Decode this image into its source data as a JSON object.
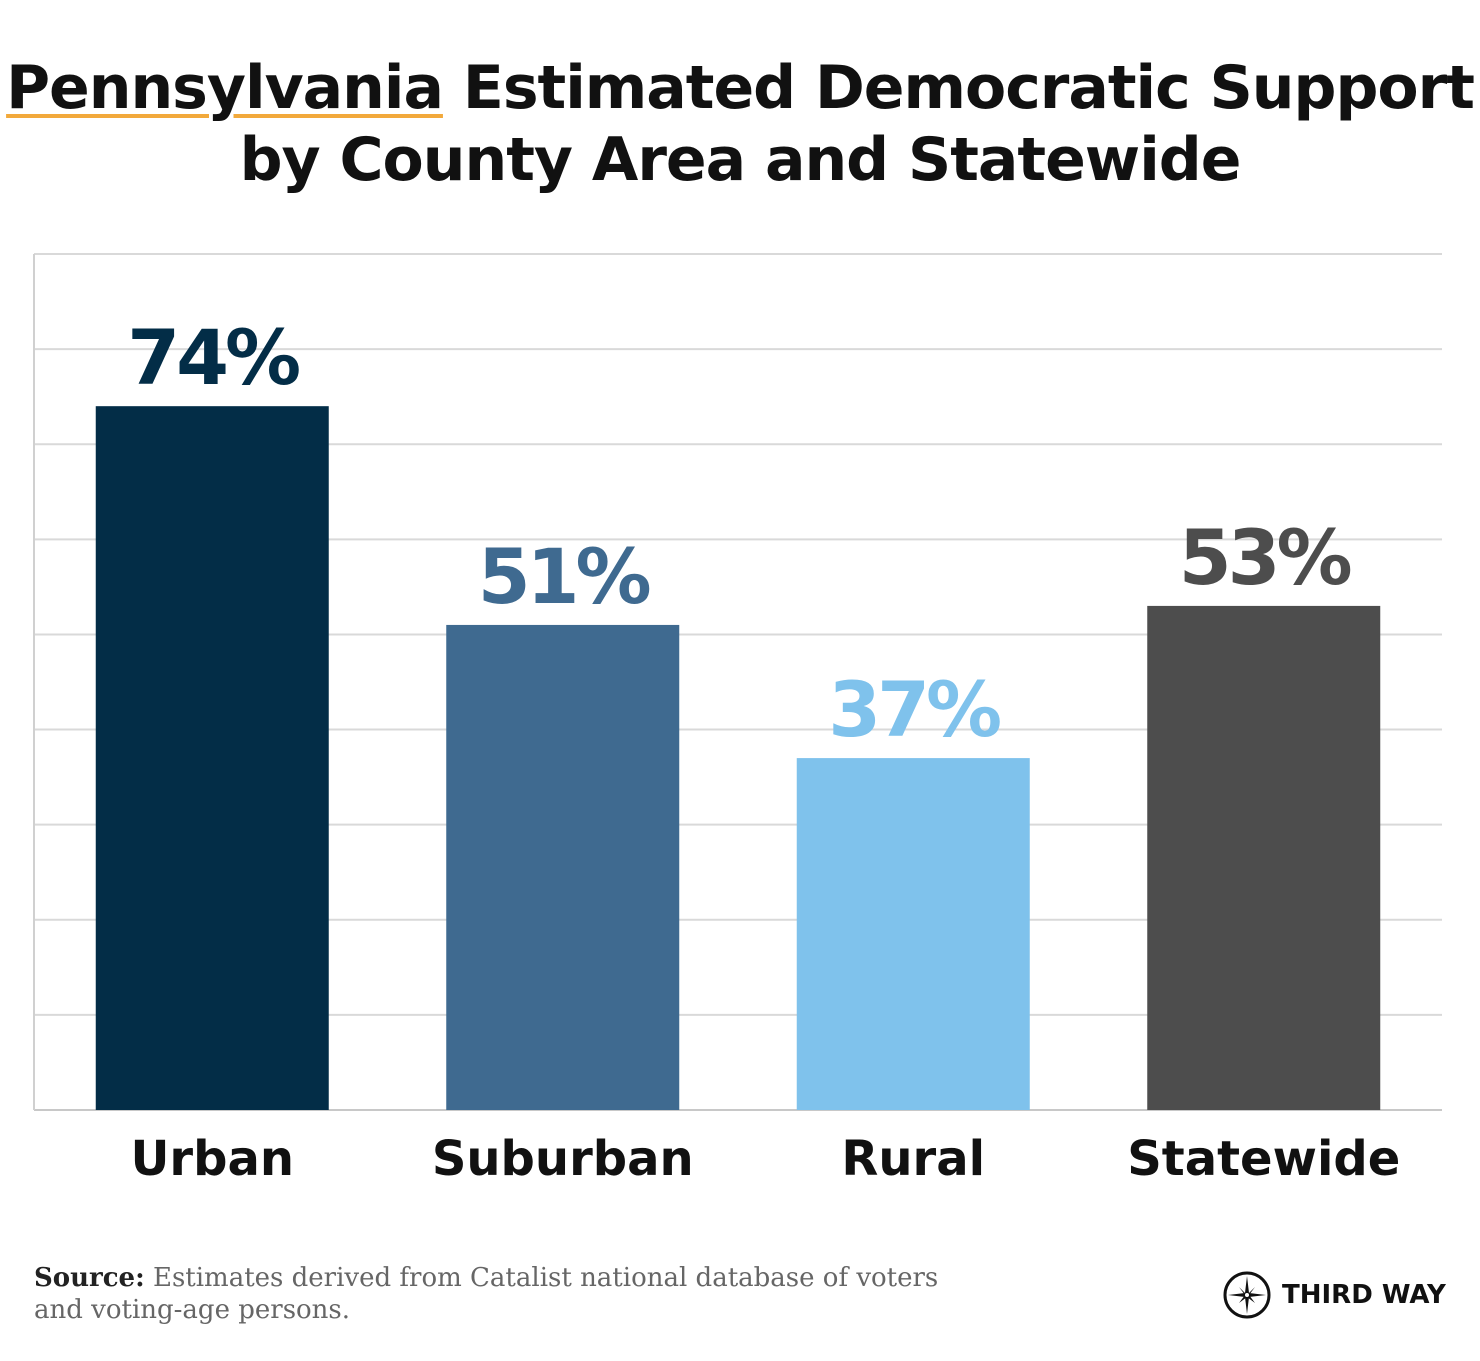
{
  "title": {
    "highlight": "Pennsylvania",
    "rest_line1": " Estimated Democratic Support",
    "line2": "by County Area and Statewide"
  },
  "chart_data": {
    "type": "bar",
    "title": "Pennsylvania Estimated Democratic Support by County Area and Statewide",
    "categories": [
      "Urban",
      "Suburban",
      "Rural",
      "Statewide"
    ],
    "values": [
      74,
      51,
      37,
      53
    ],
    "data_labels": [
      "74%",
      "51%",
      "37%",
      "53%"
    ],
    "colors": [
      "#032d47",
      "#3f6a90",
      "#7fc2ec",
      "#4d4d4d"
    ],
    "xlabel": "",
    "ylabel": "",
    "ylim": [
      0,
      90
    ],
    "grid_step": 10,
    "grid": true,
    "y_tick_labels": false
  },
  "source": {
    "label": "Source:",
    "text": " Estimates derived from Catalist national database of voters and voting-age persons."
  },
  "logo": {
    "text": "THIRD WAY",
    "icon": "compass-star-icon"
  },
  "colors": {
    "underline": "#f2a93b",
    "grid": "#d9d9d9"
  }
}
